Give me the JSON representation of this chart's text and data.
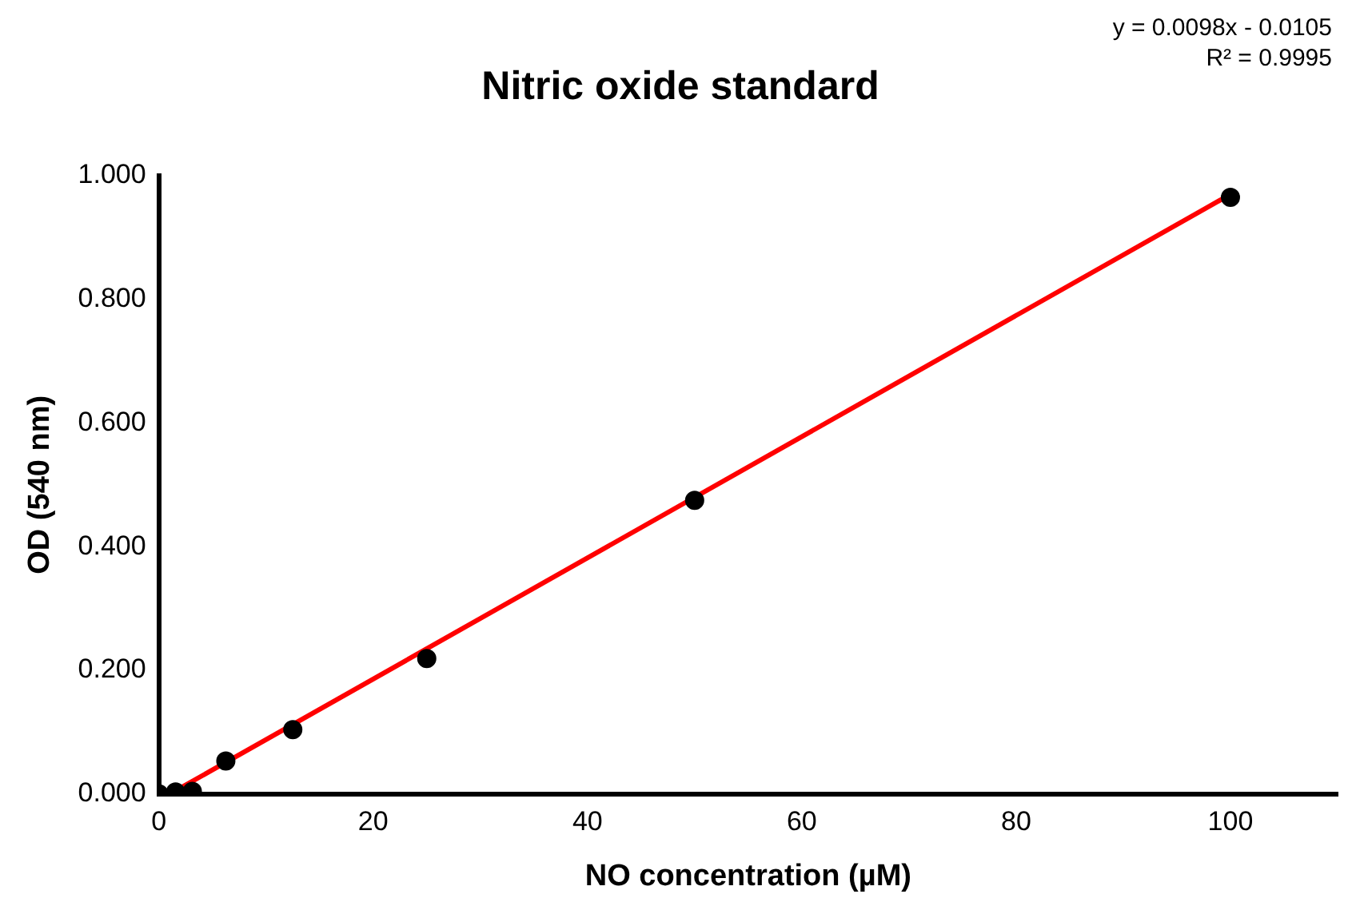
{
  "chart_data": {
    "type": "scatter",
    "title": "Nitric oxide standard",
    "xlabel": "NO concentration (µM)",
    "ylabel": "OD (540 nm)",
    "x": [
      0,
      1.5625,
      3.125,
      6.25,
      12.5,
      25,
      50,
      100
    ],
    "series": [
      {
        "color": "#000000",
        "values": [
          0,
          0.003,
          0.004,
          0.053,
          0.104,
          0.219,
          0.475,
          0.965
        ]
      },
      {
        "type": "line",
        "marker": "none",
        "color": "#ff0000",
        "x": [
          1.5625,
          100
        ],
        "values": [
          0.005,
          0.97
        ]
      }
    ],
    "xlim": [
      0,
      110
    ],
    "xticks": [
      0,
      20,
      40,
      60,
      80,
      100
    ],
    "ylim": [
      0,
      1
    ],
    "yticks": [
      {
        "value": 0,
        "label": "0.000"
      },
      {
        "value": 0.2,
        "label": "0.200"
      },
      {
        "value": 0.4,
        "label": "0.400"
      },
      {
        "value": 0.6,
        "label": "0.600"
      },
      {
        "value": 0.8,
        "label": "0.800"
      },
      {
        "value": 1,
        "label": "1.000"
      }
    ],
    "grid": false,
    "legend": false,
    "marker": "circle",
    "line_style": "solid",
    "annotations": [
      "y = 0.0098x - 0.0105",
      "R² = 0.9995"
    ]
  }
}
